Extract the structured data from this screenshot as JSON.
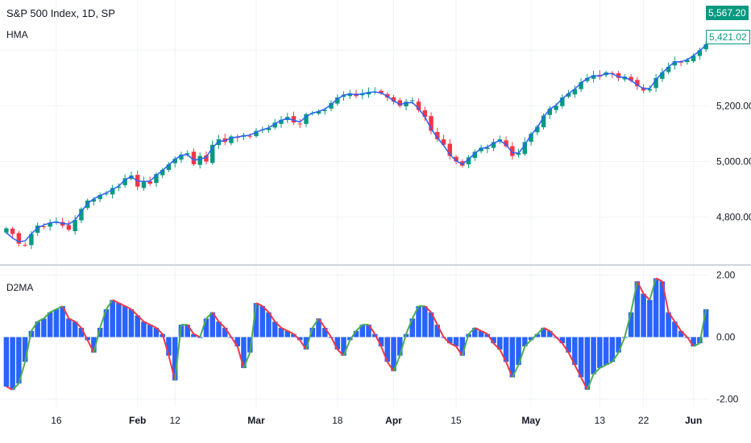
{
  "header": {
    "symbol_line": "S&P 500 Index, 1D, SP",
    "indicator_main": "HMA",
    "indicator_sub": "D2MA"
  },
  "price_badges": {
    "high": "5,567.20",
    "last": "5,421.02"
  },
  "colors": {
    "up": "#089981",
    "down": "#f23645",
    "hma_line": "#2962ff",
    "hist": "#2962ff",
    "osc_rise": "#4caf50",
    "osc_fall": "#f23645",
    "grid": "#f0f3fa",
    "axis_text": "#131722"
  },
  "x_axis": {
    "ticks": [
      {
        "label": "16",
        "bold": false
      },
      {
        "label": "Feb",
        "bold": true
      },
      {
        "label": "12",
        "bold": false
      },
      {
        "label": "Mar",
        "bold": true
      },
      {
        "label": "18",
        "bold": false
      },
      {
        "label": "Apr",
        "bold": true
      },
      {
        "label": "15",
        "bold": false
      },
      {
        "label": "May",
        "bold": true
      },
      {
        "label": "13",
        "bold": false
      },
      {
        "label": "22",
        "bold": false
      },
      {
        "label": "Jun",
        "bold": true
      }
    ],
    "tick_bar_index": [
      8,
      21,
      27,
      40,
      53,
      62,
      72,
      84,
      95,
      102,
      110
    ]
  },
  "chart_data": [
    {
      "type": "candlestick",
      "title": "S&P 500 Index, 1D, SP",
      "series_names": [
        "HMA"
      ],
      "y_ticks": [
        "4,800.00",
        "5,000.00",
        "5,200.00"
      ],
      "y_tick_values": [
        4800,
        5000,
        5200
      ],
      "ylim": [
        4640,
        5580
      ],
      "closes": [
        4760,
        4740,
        4705,
        4700,
        4740,
        4770,
        4765,
        4780,
        4785,
        4770,
        4755,
        4790,
        4830,
        4860,
        4865,
        4880,
        4885,
        4905,
        4910,
        4940,
        4950,
        4910,
        4930,
        4920,
        4955,
        4970,
        4990,
        5010,
        5025,
        5030,
        4990,
        5020,
        5000,
        5060,
        5080,
        5070,
        5090,
        5085,
        5095,
        5090,
        5110,
        5115,
        5120,
        5140,
        5150,
        5160,
        5140,
        5135,
        5170,
        5175,
        5180,
        5185,
        5210,
        5230,
        5240,
        5245,
        5235,
        5245,
        5250,
        5250,
        5245,
        5230,
        5215,
        5200,
        5215,
        5220,
        5185,
        5160,
        5110,
        5080,
        5060,
        5020,
        5000,
        4985,
        5015,
        5035,
        5050,
        5050,
        5070,
        5080,
        5055,
        5020,
        5030,
        5070,
        5100,
        5125,
        5165,
        5190,
        5200,
        5230,
        5245,
        5260,
        5285,
        5300,
        5310,
        5305,
        5320,
        5315,
        5300,
        5305,
        5290,
        5270,
        5255,
        5260,
        5300,
        5320,
        5340,
        5360,
        5355,
        5365,
        5380,
        5400,
        5421
      ],
      "bar_count": 113,
      "hma_values": [
        4745,
        4725,
        4712,
        4715,
        4740,
        4762,
        4772,
        4780,
        4782,
        4778,
        4775,
        4790,
        4820,
        4850,
        4866,
        4878,
        4887,
        4900,
        4912,
        4935,
        4945,
        4930,
        4928,
        4930,
        4950,
        4968,
        4988,
        5008,
        5022,
        5025,
        5005,
        5008,
        5015,
        5050,
        5072,
        5075,
        5085,
        5088,
        5092,
        5095,
        5105,
        5114,
        5121,
        5136,
        5148,
        5155,
        5148,
        5142,
        5162,
        5174,
        5180,
        5188,
        5205,
        5225,
        5238,
        5243,
        5240,
        5243,
        5248,
        5250,
        5246,
        5234,
        5218,
        5205,
        5210,
        5212,
        5190,
        5160,
        5118,
        5085,
        5058,
        5025,
        5003,
        4990,
        5008,
        5030,
        5046,
        5052,
        5066,
        5075,
        5060,
        5032,
        5030,
        5060,
        5096,
        5122,
        5160,
        5188,
        5202,
        5226,
        5244,
        5260,
        5282,
        5298,
        5308,
        5307,
        5316,
        5315,
        5304,
        5302,
        5292,
        5275,
        5262,
        5262,
        5294,
        5318,
        5340,
        5358,
        5358,
        5366,
        5380,
        5398,
        5418
      ]
    },
    {
      "type": "histogram",
      "title": "D2MA",
      "y_ticks": [
        "2.00",
        "0.00",
        "-2.00"
      ],
      "y_tick_values": [
        2,
        0,
        -2
      ],
      "ylim": [
        -2.25,
        2.25
      ],
      "values": [
        -1.6,
        -1.7,
        -1.5,
        -0.8,
        0.2,
        0.5,
        0.6,
        0.8,
        0.9,
        1.0,
        0.6,
        0.5,
        0.3,
        -0.1,
        -0.5,
        0.3,
        0.9,
        1.2,
        1.1,
        1.0,
        0.9,
        0.7,
        0.5,
        0.4,
        0.3,
        0.1,
        -0.6,
        -1.4,
        0.4,
        0.4,
        0.1,
        0.0,
        0.6,
        0.8,
        0.5,
        0.3,
        0.0,
        -0.3,
        -1.0,
        -0.5,
        1.1,
        1.0,
        0.8,
        0.5,
        0.3,
        0.2,
        0.1,
        -0.1,
        -0.4,
        0.3,
        0.6,
        0.3,
        0.0,
        -0.4,
        -0.6,
        -0.1,
        0.2,
        0.4,
        0.4,
        0.1,
        -0.3,
        -0.8,
        -1.1,
        -0.6,
        0.1,
        0.6,
        1.0,
        1.0,
        0.8,
        0.4,
        0.0,
        -0.2,
        -0.3,
        -0.6,
        0.1,
        0.3,
        0.2,
        0.1,
        -0.2,
        -0.4,
        -0.8,
        -1.3,
        -0.9,
        -0.3,
        -0.1,
        0.1,
        0.3,
        0.2,
        0.0,
        -0.2,
        -0.5,
        -0.9,
        -1.3,
        -1.7,
        -1.2,
        -1.0,
        -0.9,
        -0.8,
        -0.5,
        0.0,
        0.8,
        1.8,
        1.4,
        1.2,
        1.9,
        1.8,
        0.8,
        0.5,
        0.2,
        0.0,
        -0.3,
        -0.2,
        0.9
      ],
      "bar_count": 113
    }
  ]
}
